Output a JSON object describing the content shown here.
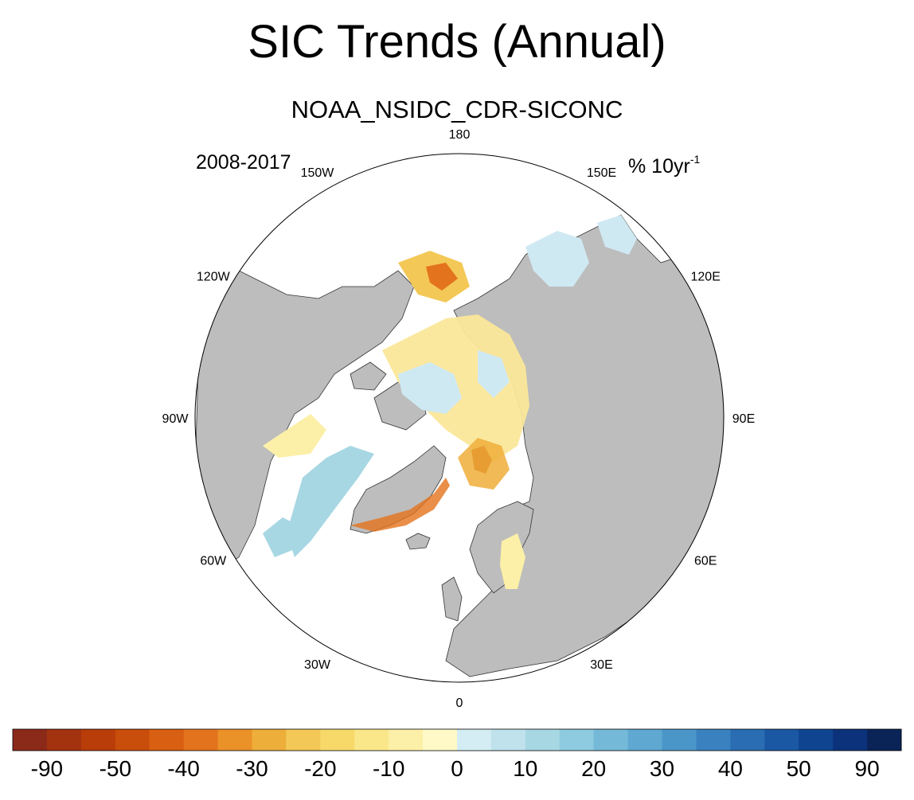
{
  "title": "SIC Trends (Annual)",
  "subtitle": "NOAA_NSIDC_CDR-SICONC",
  "left_string": "2008-2017",
  "units": {
    "main": "% 10yr",
    "superscript": "-1"
  },
  "longitude_labels": [
    "180",
    "150E",
    "120E",
    "90E",
    "60E",
    "30E",
    "0",
    "30W",
    "60W",
    "90W",
    "120W",
    "150W"
  ],
  "colorbar": {
    "labels": [
      "-90",
      "-50",
      "-40",
      "-30",
      "-20",
      "-10",
      "0",
      "10",
      "20",
      "30",
      "40",
      "50",
      "90"
    ],
    "colors": [
      "#8c2a19",
      "#a3320f",
      "#b83d09",
      "#c94d0b",
      "#d95f12",
      "#e4731d",
      "#ea9128",
      "#eeae3a",
      "#f3c856",
      "#f7d96a",
      "#fae78a",
      "#fcf0a8",
      "#fef9c6",
      "#d4ecf4",
      "#bfe2ec",
      "#a7d7e3",
      "#8ecae0",
      "#75b9d8",
      "#5ea8d1",
      "#4b96c9",
      "#3a82bf",
      "#2a6db2",
      "#1b58a3",
      "#0f4490",
      "#0b327a",
      "#0a2458"
    ]
  },
  "colors": {
    "land": "#bdbdbd",
    "ocean": "#ffffff",
    "coast": "#333333"
  }
}
